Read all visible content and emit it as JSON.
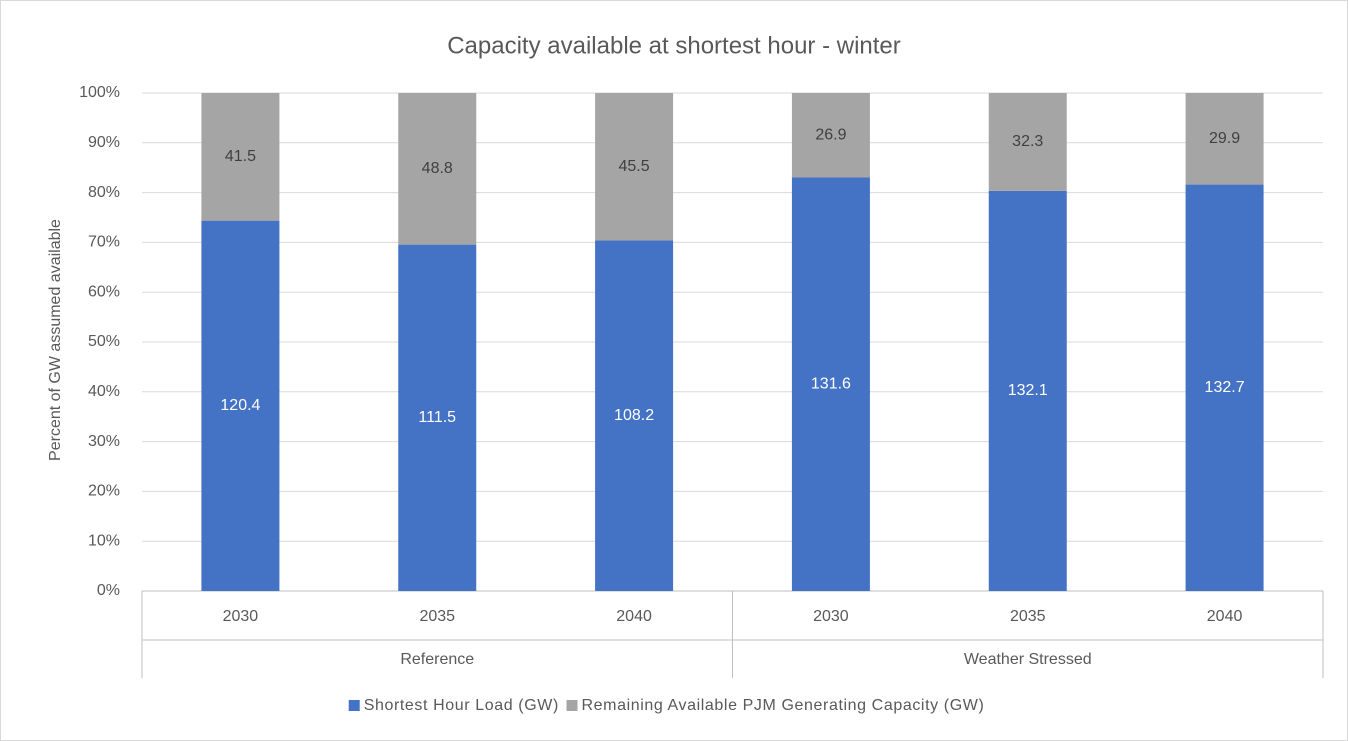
{
  "chart_data": {
    "type": "bar",
    "stacking": "percent",
    "title": "Capacity available at shortest hour - winter",
    "ylabel": "Percent of GW assumed available",
    "categories": [
      "2030",
      "2035",
      "2040",
      "2030",
      "2035",
      "2040"
    ],
    "groups": [
      {
        "name": "Reference",
        "size": 3
      },
      {
        "name": "Weather Stressed",
        "size": 3
      }
    ],
    "series": [
      {
        "name": "Shortest Hour Load (GW)",
        "color": "#4472c4",
        "values": [
          120.4,
          111.5,
          108.2,
          131.6,
          132.1,
          132.7
        ]
      },
      {
        "name": "Remaining Available PJM Generating Capacity (GW)",
        "color": "#a5a5a5",
        "values": [
          41.5,
          48.8,
          45.5,
          26.9,
          32.3,
          29.9
        ]
      }
    ],
    "ylim": [
      0,
      100
    ],
    "yticks": [
      {
        "value": 0,
        "label": "0%"
      },
      {
        "value": 10,
        "label": "10%"
      },
      {
        "value": 20,
        "label": "20%"
      },
      {
        "value": 30,
        "label": "30%"
      },
      {
        "value": 40,
        "label": "40%"
      },
      {
        "value": 50,
        "label": "50%"
      },
      {
        "value": 60,
        "label": "60%"
      },
      {
        "value": 70,
        "label": "70%"
      },
      {
        "value": 80,
        "label": "80%"
      },
      {
        "value": 90,
        "label": "90%"
      },
      {
        "value": 100,
        "label": "100%"
      }
    ],
    "grid": true,
    "legend": "bottom"
  }
}
